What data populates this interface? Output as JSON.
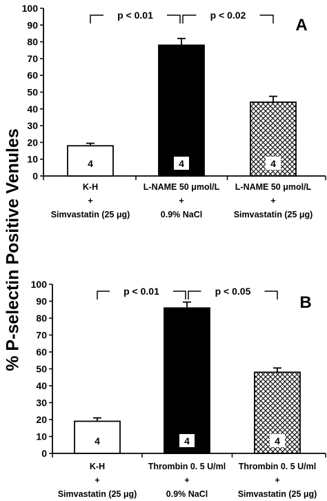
{
  "figure": {
    "ylabel": "% P-selectin Positive Venules",
    "pattern_fill": "#d9d9d9",
    "bar_dark": "#000000"
  },
  "chart_data": [
    {
      "type": "bar",
      "panel_label": "A",
      "ylim": [
        0,
        100
      ],
      "yticks": [
        0,
        10,
        20,
        30,
        40,
        50,
        60,
        70,
        80,
        90,
        100
      ],
      "categories": [
        [
          "K-H",
          "+",
          "Simvastatin (25 μg)"
        ],
        [
          "L-NAME 50 μmol/L",
          "+",
          "0.9% NaCl"
        ],
        [
          "L-NAME 50 μmol/L",
          "+",
          "Simvastatin (25 μg)"
        ]
      ],
      "values": [
        18,
        78,
        44
      ],
      "errors": [
        1.5,
        4,
        3.5
      ],
      "fills": [
        "white",
        "black",
        "crosshatch"
      ],
      "n_labels": [
        "4",
        "4",
        "4"
      ],
      "comparisons": [
        {
          "from": 0,
          "to": 1,
          "label": "p < 0.01"
        },
        {
          "from": 1,
          "to": 2,
          "label": "p < 0.02"
        }
      ]
    },
    {
      "type": "bar",
      "panel_label": "B",
      "ylim": [
        0,
        100
      ],
      "yticks": [
        0,
        10,
        20,
        30,
        40,
        50,
        60,
        70,
        80,
        90,
        100
      ],
      "categories": [
        [
          "K-H",
          "+",
          "Simvastatin (25 μg)"
        ],
        [
          "Thrombin 0. 5 U/ml",
          "+",
          "0.9% NaCl"
        ],
        [
          "Thrombin 0. 5 U/ml",
          "+",
          "Simvastatin (25 μg)"
        ]
      ],
      "values": [
        19,
        86,
        48
      ],
      "errors": [
        2,
        3.5,
        2.5
      ],
      "fills": [
        "white",
        "black",
        "crosshatch"
      ],
      "n_labels": [
        "4",
        "4",
        "4"
      ],
      "comparisons": [
        {
          "from": 0,
          "to": 1,
          "label": "p < 0.01"
        },
        {
          "from": 1,
          "to": 2,
          "label": "p < 0.05"
        }
      ]
    }
  ]
}
